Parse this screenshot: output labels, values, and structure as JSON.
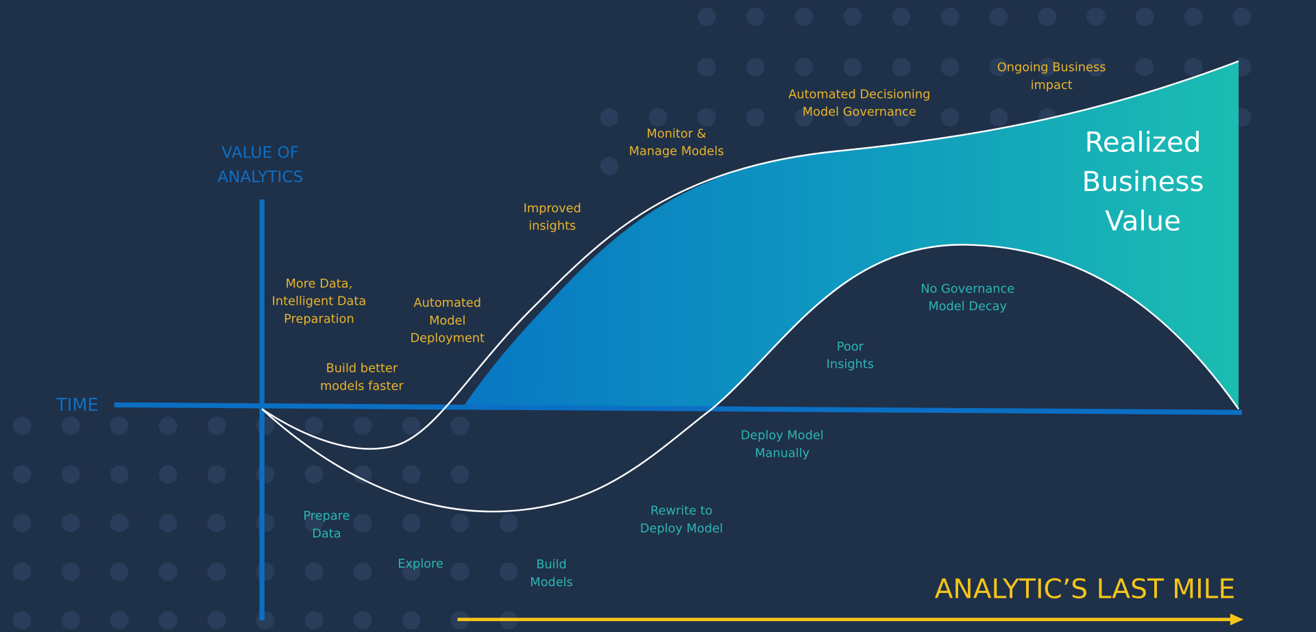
{
  "axes": {
    "y_label": [
      "VALUE OF",
      "ANALYTICS"
    ],
    "x_label": "TIME"
  },
  "upper_labels": [
    [
      "More Data,",
      "Intelligent Data",
      "Preparation"
    ],
    [
      "Build better",
      "models faster"
    ],
    [
      "Automated",
      "Model",
      "Deployment"
    ],
    [
      "Improved",
      "insights"
    ],
    [
      "Monitor &",
      "Manage Models"
    ],
    [
      "Automated Decisioning",
      "Model Governance"
    ],
    [
      "Ongoing Business",
      "impact"
    ]
  ],
  "lower_labels": [
    [
      "No Governance",
      "Model Decay"
    ],
    [
      "Poor",
      "Insights"
    ],
    [
      "Deploy Model",
      "Manually"
    ],
    [
      "Rewrite to",
      "Deploy Model"
    ],
    [
      "Prepare",
      "Data"
    ],
    [
      "Explore"
    ],
    [
      "Build",
      "Models"
    ]
  ],
  "value_label": [
    "Realized",
    "Business",
    "Value"
  ],
  "banner": "ANALYTIC’S LAST MILE"
}
